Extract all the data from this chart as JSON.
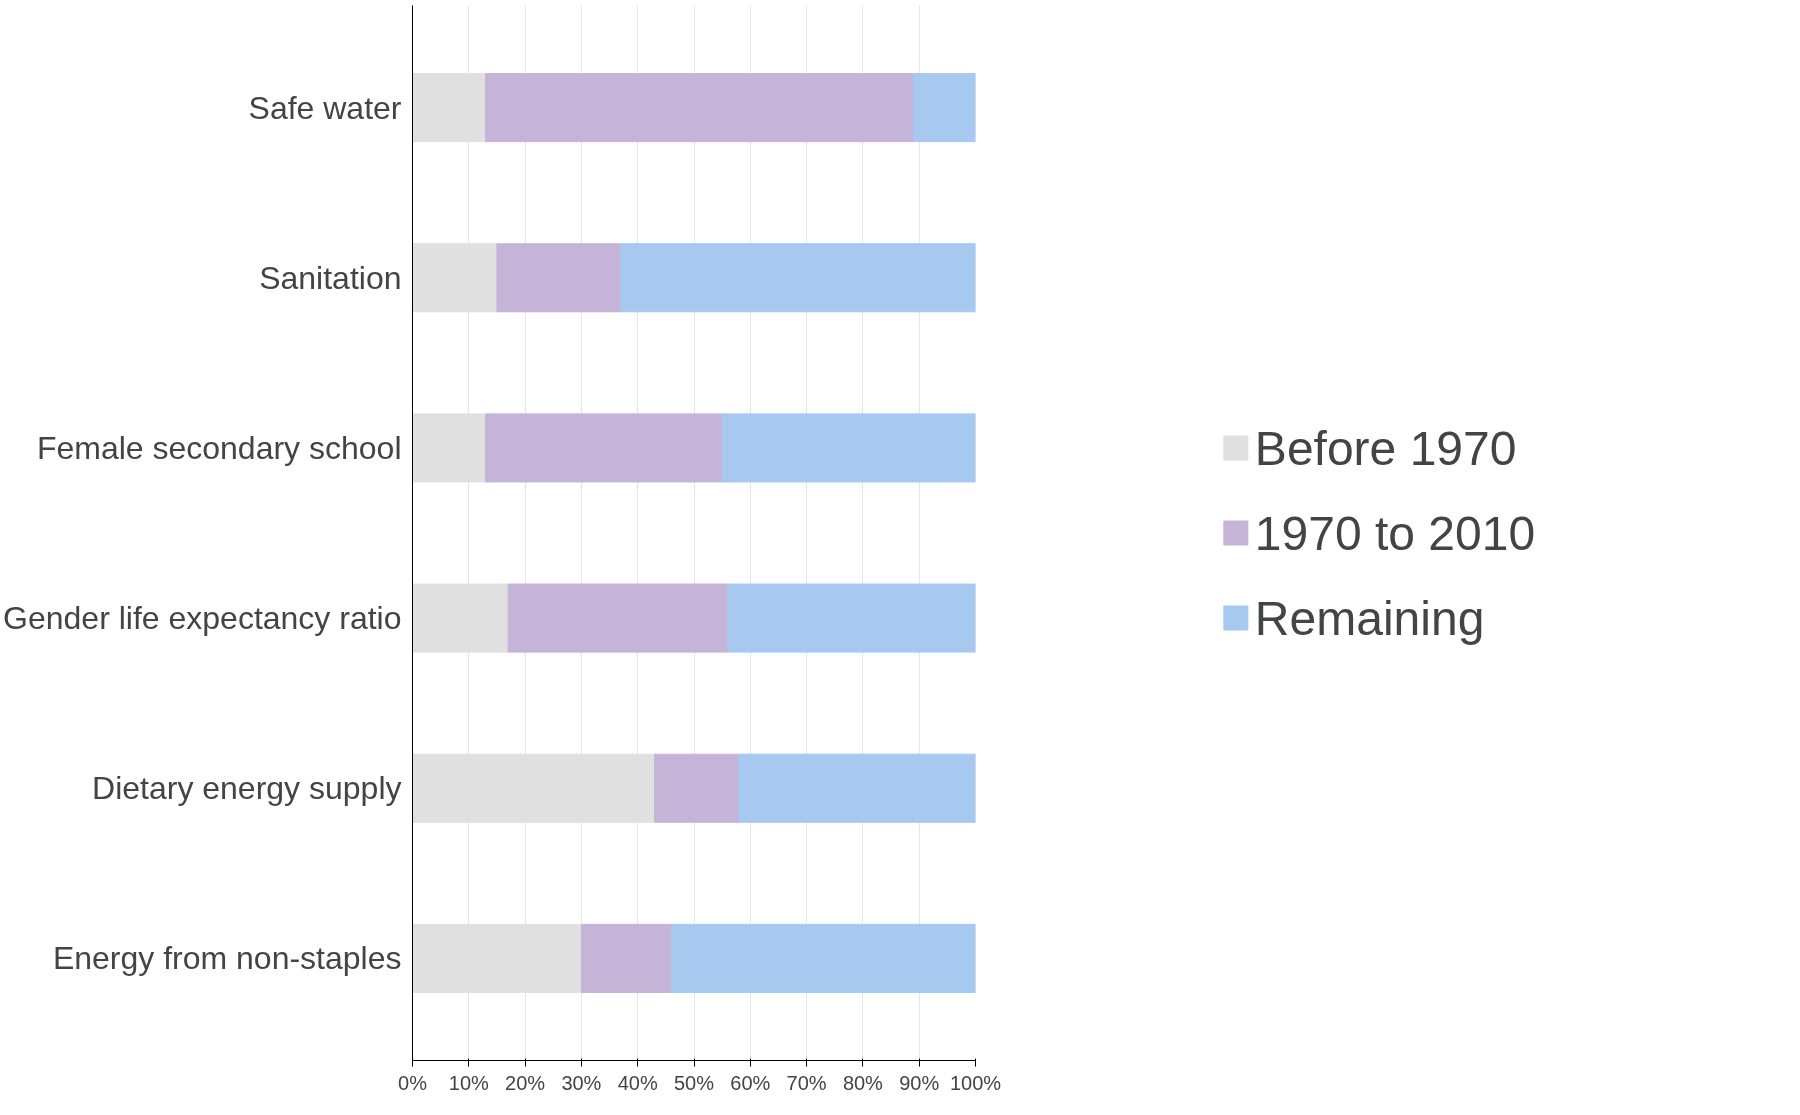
{
  "chart_data": {
    "type": "bar",
    "orientation": "horizontal",
    "stacked": true,
    "categories": [
      "Safe water",
      "Sanitation",
      "Female secondary school",
      "Gender life expectancy ratio",
      "Dietary energy supply",
      "Energy from non-staples"
    ],
    "series": [
      {
        "name": "Before 1970",
        "color": "#e0e0e0",
        "values": [
          13,
          15,
          13,
          17,
          43,
          30
        ]
      },
      {
        "name": "1970 to 2010",
        "color": "#c5b3d8",
        "values": [
          76,
          22,
          42,
          39,
          15,
          16
        ]
      },
      {
        "name": "Remaining",
        "color": "#a8c9ef",
        "values": [
          11,
          63,
          45,
          44,
          42,
          54
        ]
      }
    ],
    "xlim": [
      0,
      100
    ],
    "xticks": [
      {
        "value": 0,
        "label": "0%"
      },
      {
        "value": 10,
        "label": "10%"
      },
      {
        "value": 20,
        "label": "20%"
      },
      {
        "value": 30,
        "label": "30%"
      },
      {
        "value": 40,
        "label": "40%"
      },
      {
        "value": 50,
        "label": "50%"
      },
      {
        "value": 60,
        "label": "60%"
      },
      {
        "value": 70,
        "label": "70%"
      },
      {
        "value": 80,
        "label": "80%"
      },
      {
        "value": 90,
        "label": "90%"
      },
      {
        "value": 100,
        "label": "100%"
      }
    ],
    "grid": "x",
    "legend": "right"
  }
}
